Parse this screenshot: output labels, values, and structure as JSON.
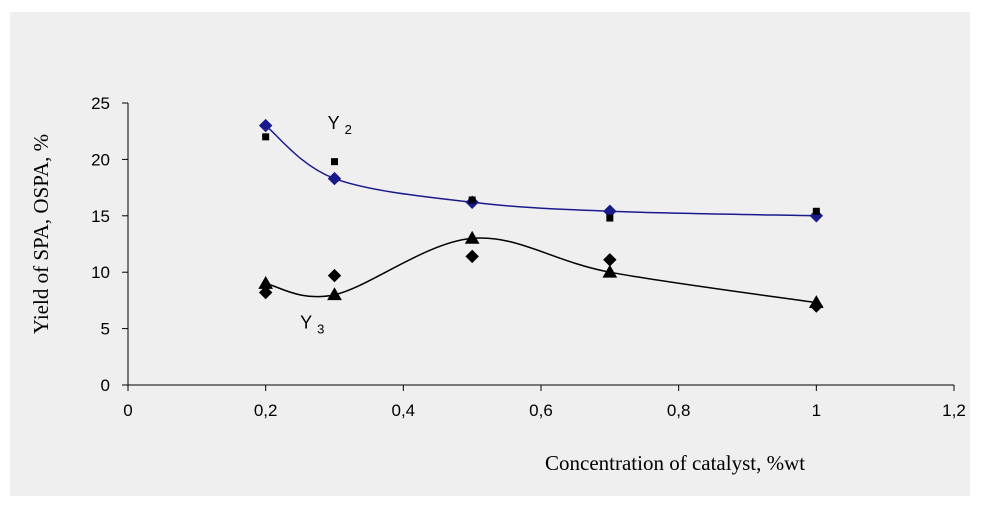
{
  "chart_data": {
    "type": "scatter",
    "title": "",
    "xlabel": "Concentration of catalyst, %wt",
    "ylabel": "Yield of SPA, OSPA, %",
    "xlim": [
      0,
      1.2
    ],
    "ylim": [
      0,
      25
    ],
    "x_ticks": [
      "0",
      "0,2",
      "0,4",
      "0,6",
      "0,8",
      "1",
      "1,2"
    ],
    "x_tick_values": [
      0,
      0.2,
      0.4,
      0.6,
      0.8,
      1.0,
      1.2
    ],
    "y_ticks": [
      "0",
      "5",
      "10",
      "15",
      "20",
      "25"
    ],
    "y_tick_values": [
      0,
      5,
      10,
      15,
      20,
      25
    ],
    "grid": false,
    "legend": "none",
    "series": [
      {
        "marker": "diamond",
        "color": "#1a1a8c",
        "x": [
          0.2,
          0.3,
          0.5,
          0.7,
          1.0
        ],
        "y": [
          23.0,
          18.3,
          16.2,
          15.4,
          15.0
        ],
        "trendline": true
      },
      {
        "marker": "square",
        "color": "#000000",
        "x": [
          0.2,
          0.3,
          0.5,
          0.7,
          1.0
        ],
        "y": [
          22.0,
          19.8,
          16.4,
          14.8,
          15.4
        ]
      },
      {
        "marker": "triangle",
        "color": "#000000",
        "x": [
          0.2,
          0.3,
          0.5,
          0.7,
          1.0
        ],
        "y": [
          9.0,
          8.0,
          13.0,
          10.0,
          7.3
        ],
        "trendline": true
      },
      {
        "marker": "diamond",
        "color": "#000000",
        "x": [
          0.2,
          0.3,
          0.5,
          0.7,
          1.0
        ],
        "y": [
          8.2,
          9.7,
          11.4,
          11.1,
          7.0
        ]
      }
    ],
    "annotations": [
      {
        "main": "Y",
        "sub": "2",
        "x": 0.29,
        "y": 22.7
      },
      {
        "main": "Y",
        "sub": "3",
        "x": 0.25,
        "y": 5.0
      }
    ]
  }
}
